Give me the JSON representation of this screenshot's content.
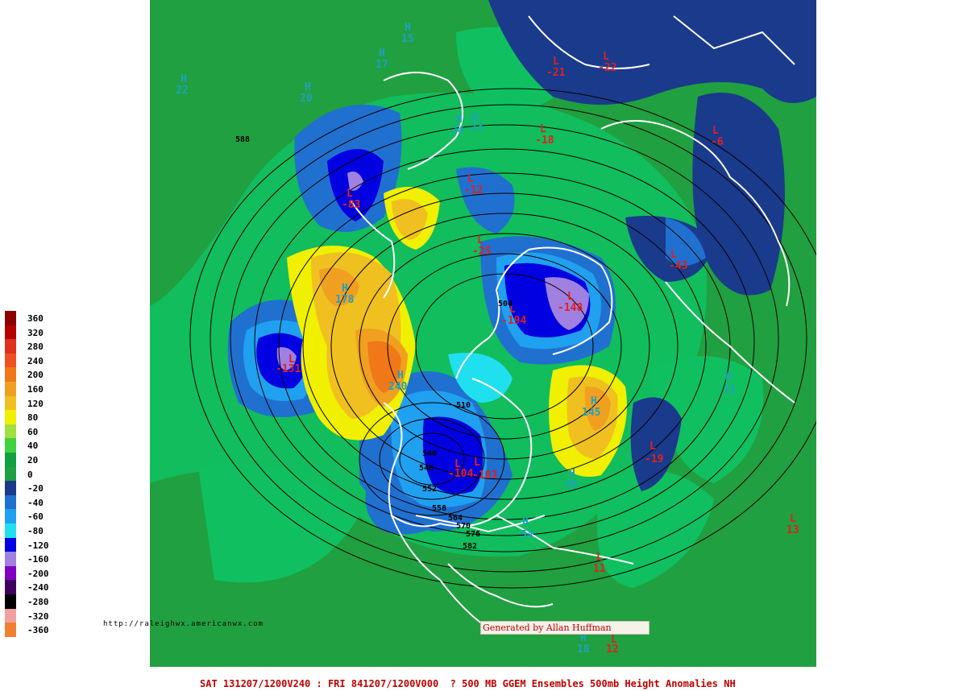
{
  "footer": "SAT 131207/1200V240 : FRI 841207/1200V000  ? 500 MB GGEM Ensembles 500mb Height Anomalies NH",
  "credit": {
    "url": "http://raleighwx.americanwx.com",
    "generated_by": "Generated by Allan Huffman"
  },
  "legend": [
    {
      "label": "360",
      "color": "#8b0000"
    },
    {
      "label": "320",
      "color": "#b40000"
    },
    {
      "label": "280",
      "color": "#e03020"
    },
    {
      "label": "240",
      "color": "#ee5020"
    },
    {
      "label": "200",
      "color": "#f07818"
    },
    {
      "label": "160",
      "color": "#f0a020"
    },
    {
      "label": "120",
      "color": "#f0c020"
    },
    {
      "label": "80",
      "color": "#f0f000"
    },
    {
      "label": "60",
      "color": "#a0e040"
    },
    {
      "label": "40",
      "color": "#40d040"
    },
    {
      "label": "20",
      "color": "#10a040"
    },
    {
      "label": "0",
      "color": "#20a040"
    },
    {
      "label": "-20",
      "color": "#1a3a8c"
    },
    {
      "label": "-40",
      "color": "#2070d0"
    },
    {
      "label": "-60",
      "color": "#20a0f0"
    },
    {
      "label": "-80",
      "color": "#20e0f0"
    },
    {
      "label": "-120",
      "color": "#0000e0"
    },
    {
      "label": "-160",
      "color": "#a080e0"
    },
    {
      "label": "-200",
      "color": "#8000c0"
    },
    {
      "label": "-240",
      "color": "#400060"
    },
    {
      "label": "-280",
      "color": "#000000"
    },
    {
      "label": "-320",
      "color": "#f0a0a0"
    },
    {
      "label": "-360",
      "color": "#f08030"
    }
  ],
  "highs": [
    {
      "text": "H",
      "value": "145"
    },
    {
      "text": "H",
      "value": "240"
    },
    {
      "text": "H",
      "value": "178"
    },
    {
      "text": "H",
      "value": "50"
    },
    {
      "text": "H",
      "value": "54"
    },
    {
      "text": "H",
      "value": "21"
    },
    {
      "text": "H",
      "value": "20"
    },
    {
      "text": "H",
      "value": "22"
    },
    {
      "text": "H",
      "value": "23"
    },
    {
      "text": "H",
      "value": "24"
    },
    {
      "text": "H",
      "value": "15"
    },
    {
      "text": "H",
      "value": "17"
    },
    {
      "text": "H",
      "value": "18"
    }
  ],
  "lows": [
    {
      "text": "L",
      "value": "-131"
    },
    {
      "text": "L",
      "value": "-83"
    },
    {
      "text": "L",
      "value": "-148"
    },
    {
      "text": "L",
      "value": "-194"
    },
    {
      "text": "L",
      "value": "-104"
    },
    {
      "text": "L",
      "value": "-103"
    },
    {
      "text": "L",
      "value": "-25"
    },
    {
      "text": "L",
      "value": "-43"
    },
    {
      "text": "L",
      "value": "-19"
    },
    {
      "text": "L",
      "value": "-22"
    },
    {
      "text": "L",
      "value": "-21"
    },
    {
      "text": "L",
      "value": "-18"
    },
    {
      "text": "L",
      "value": "-12"
    },
    {
      "text": "L",
      "value": "-6"
    },
    {
      "text": "L",
      "value": "13"
    },
    {
      "text": "L",
      "value": "11"
    },
    {
      "text": "L",
      "value": "12"
    }
  ],
  "contours": [
    "588",
    "510",
    "552",
    "558",
    "564",
    "570",
    "576",
    "582",
    "540",
    "504",
    "546"
  ],
  "colors": {
    "ocean_green": "#20a040",
    "land_green": "#10c060",
    "coast": "#ffffff"
  }
}
